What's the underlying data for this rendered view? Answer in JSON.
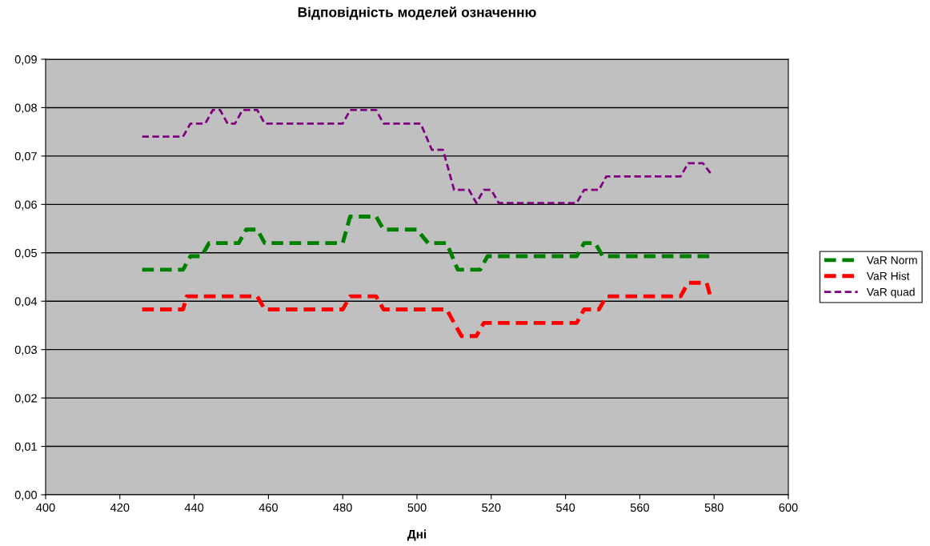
{
  "chart_data": {
    "type": "line",
    "title": "Відповідність моделей означенню",
    "xlabel": "Дні",
    "xlim": [
      400,
      600
    ],
    "xticks": [
      400,
      420,
      440,
      460,
      480,
      500,
      520,
      540,
      560,
      580,
      600
    ],
    "ylim": [
      0,
      0.09
    ],
    "yticks": [
      {
        "value": 0,
        "label": "0,00"
      },
      {
        "value": 0.01,
        "label": "0,01"
      },
      {
        "value": 0.02,
        "label": "0,02"
      },
      {
        "value": 0.03,
        "label": "0,03"
      },
      {
        "value": 0.04,
        "label": "0,04"
      },
      {
        "value": 0.05,
        "label": "0,05"
      },
      {
        "value": 0.06,
        "label": "0,06"
      },
      {
        "value": 0.07,
        "label": "0,07"
      },
      {
        "value": 0.08,
        "label": "0,08"
      },
      {
        "value": 0.09,
        "label": "0,09"
      }
    ],
    "grid": "y",
    "legend": "right",
    "line_style": "dashed",
    "marker": "none",
    "series": [
      {
        "name": "VaR Norm",
        "color": "#008000",
        "x": [
          426,
          437,
          439,
          442,
          444,
          452,
          454,
          457,
          459,
          480,
          482,
          489,
          491,
          500,
          503,
          508,
          511,
          517,
          519,
          543,
          545,
          548,
          550,
          579
        ],
        "values": [
          0.0465,
          0.0465,
          0.0493,
          0.0493,
          0.052,
          0.052,
          0.0548,
          0.0548,
          0.052,
          0.052,
          0.0575,
          0.0575,
          0.0548,
          0.0548,
          0.052,
          0.052,
          0.0465,
          0.0465,
          0.0493,
          0.0493,
          0.052,
          0.052,
          0.0493,
          0.0493
        ]
      },
      {
        "name": "VaR Hist",
        "color": "#ff0000",
        "x": [
          426,
          437,
          438,
          457,
          459,
          480,
          482,
          489,
          491,
          508,
          510,
          512,
          516,
          518,
          543,
          545,
          549,
          551,
          571,
          573,
          578,
          579
        ],
        "values": [
          0.0383,
          0.0383,
          0.041,
          0.041,
          0.0383,
          0.0383,
          0.041,
          0.041,
          0.0383,
          0.0383,
          0.0355,
          0.0328,
          0.0328,
          0.0355,
          0.0355,
          0.0383,
          0.0383,
          0.041,
          0.041,
          0.0438,
          0.0438,
          0.041
        ]
      },
      {
        "name": "VaR quad",
        "color": "#800080",
        "x": [
          426,
          437,
          439,
          443,
          445,
          447,
          449,
          451,
          453,
          457,
          459,
          480,
          482,
          489,
          491,
          501,
          504,
          507,
          510,
          514,
          516,
          518,
          520,
          522,
          543,
          545,
          549,
          551,
          571,
          573,
          577,
          579
        ],
        "values": [
          0.074,
          0.074,
          0.0767,
          0.0767,
          0.0795,
          0.0795,
          0.0767,
          0.0767,
          0.0795,
          0.0795,
          0.0767,
          0.0767,
          0.0795,
          0.0795,
          0.0767,
          0.0767,
          0.0713,
          0.0713,
          0.063,
          0.063,
          0.0603,
          0.063,
          0.063,
          0.0603,
          0.0603,
          0.063,
          0.063,
          0.0658,
          0.0658,
          0.0685,
          0.0685,
          0.0665
        ]
      }
    ]
  }
}
